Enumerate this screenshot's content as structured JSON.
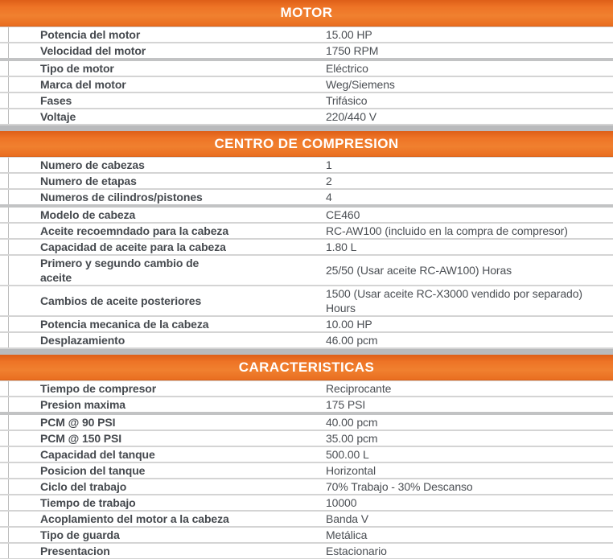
{
  "colors": {
    "accent_orange": "#ED7426",
    "band_gray": "#B9BABC",
    "row_divider": "#D4D4D4",
    "thick_divider": "#C2C3C4",
    "label_text": "#45494E",
    "value_text": "#4B4F54",
    "header_text": "#FFFFFF"
  },
  "sections": [
    {
      "title": "MOTOR",
      "thick_divider_after_rows": [
        1
      ],
      "rows": [
        {
          "label": "Potencia del motor",
          "value": "15.00 HP"
        },
        {
          "label": "Velocidad del motor",
          "value": "1750 RPM"
        },
        {
          "label": "Tipo de motor",
          "value": "Eléctrico"
        },
        {
          "label": "Marca del motor",
          "value": "Weg/Siemens"
        },
        {
          "label": "Fases",
          "value": "Trifásico"
        },
        {
          "label": "Voltaje",
          "value": "220/440 V"
        }
      ]
    },
    {
      "title": "CENTRO DE COMPRESION",
      "thick_divider_after_rows": [
        2
      ],
      "rows": [
        {
          "label": "Numero de cabezas",
          "value": "1"
        },
        {
          "label": "Numero de etapas",
          "value": "2"
        },
        {
          "label": "Numeros de cilindros/pistones",
          "value": "4"
        },
        {
          "label": "Modelo de cabeza",
          "value": "CE460"
        },
        {
          "label": "Aceite recoemndado para la cabeza",
          "value": "RC-AW100 (incluido en la compra de compresor)"
        },
        {
          "label": "Capacidad de aceite para la cabeza",
          "value": "1.80 L"
        },
        {
          "label": "Primero y segundo cambio de\naceite",
          "value": "25/50 (Usar aceite RC-AW100) Horas"
        },
        {
          "label": "Cambios de aceite posteriores",
          "value": "1500 (Usar aceite RC-X3000 vendido por separado)\nHours"
        },
        {
          "label": "Potencia mecanica de la cabeza",
          "value": "10.00 HP"
        },
        {
          "label": "Desplazamiento",
          "value": "46.00 pcm"
        }
      ]
    },
    {
      "title": "CARACTERISTICAS",
      "thick_divider_after_rows": [
        1
      ],
      "rows": [
        {
          "label": "Tiempo de compresor",
          "value": "Reciprocante"
        },
        {
          "label": "Presion maxima",
          "value": "175 PSI"
        },
        {
          "label": "PCM @ 90 PSI",
          "value": "40.00 pcm"
        },
        {
          "label": "PCM @ 150 PSI",
          "value": "35.00 pcm"
        },
        {
          "label": "Capacidad del tanque",
          "value": "500.00 L"
        },
        {
          "label": "Posicion del tanque",
          "value": "Horizontal"
        },
        {
          "label": "Ciclo del trabajo",
          "value": "70% Trabajo - 30% Descanso"
        },
        {
          "label": "Tiempo de trabajo",
          "value": "10000"
        },
        {
          "label": "Acoplamiento del motor a la cabeza",
          "value": "Banda V"
        },
        {
          "label": "Tipo de guarda",
          "value": "Metálica"
        },
        {
          "label": "Presentacion",
          "value": "Estacionario"
        }
      ]
    }
  ]
}
